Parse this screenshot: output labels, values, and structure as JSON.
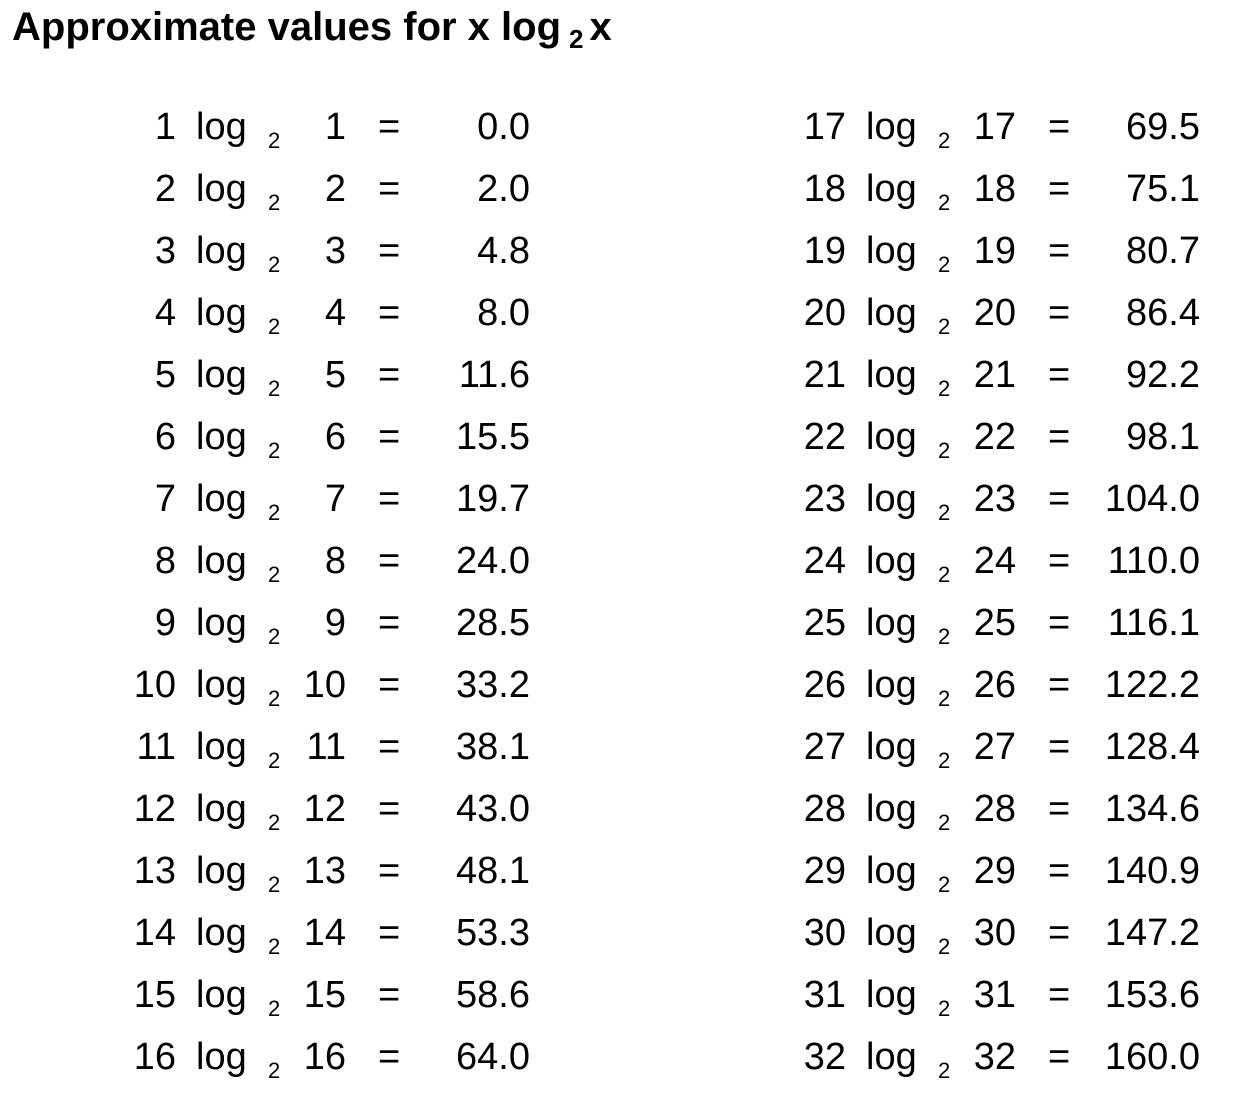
{
  "title": {
    "prefix": "Approximate values for x log",
    "base": "2",
    "suffix": "x"
  },
  "table": {
    "log_word": "log",
    "base": "2",
    "equals": "=",
    "left_column": [
      {
        "x": "1",
        "value": "0.0"
      },
      {
        "x": "2",
        "value": "2.0"
      },
      {
        "x": "3",
        "value": "4.8"
      },
      {
        "x": "4",
        "value": "8.0"
      },
      {
        "x": "5",
        "value": "11.6"
      },
      {
        "x": "6",
        "value": "15.5"
      },
      {
        "x": "7",
        "value": "19.7"
      },
      {
        "x": "8",
        "value": "24.0"
      },
      {
        "x": "9",
        "value": "28.5"
      },
      {
        "x": "10",
        "value": "33.2"
      },
      {
        "x": "11",
        "value": "38.1"
      },
      {
        "x": "12",
        "value": "43.0"
      },
      {
        "x": "13",
        "value": "48.1"
      },
      {
        "x": "14",
        "value": "53.3"
      },
      {
        "x": "15",
        "value": "58.6"
      },
      {
        "x": "16",
        "value": "64.0"
      }
    ],
    "right_column": [
      {
        "x": "17",
        "value": "69.5"
      },
      {
        "x": "18",
        "value": "75.1"
      },
      {
        "x": "19",
        "value": "80.7"
      },
      {
        "x": "20",
        "value": "86.4"
      },
      {
        "x": "21",
        "value": "92.2"
      },
      {
        "x": "22",
        "value": "98.1"
      },
      {
        "x": "23",
        "value": "104.0"
      },
      {
        "x": "24",
        "value": "110.0"
      },
      {
        "x": "25",
        "value": "116.1"
      },
      {
        "x": "26",
        "value": "122.2"
      },
      {
        "x": "27",
        "value": "128.4"
      },
      {
        "x": "28",
        "value": "134.6"
      },
      {
        "x": "29",
        "value": "140.9"
      },
      {
        "x": "30",
        "value": "147.2"
      },
      {
        "x": "31",
        "value": "153.6"
      },
      {
        "x": "32",
        "value": "160.0"
      }
    ]
  }
}
